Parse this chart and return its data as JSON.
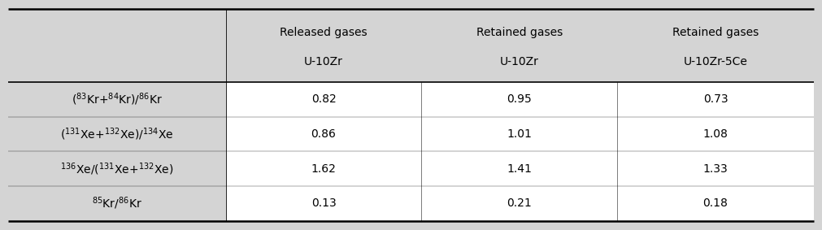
{
  "figsize": [
    10.11,
    2.83
  ],
  "dpi": 100,
  "background_color": "#d4d4d4",
  "header_bg": "#d4d4d4",
  "cell_bg": "#ffffff",
  "col_headers_line1": [
    "",
    "Released gases",
    "Retained gases",
    "Retained gases"
  ],
  "col_headers_line2": [
    "",
    "U-10Zr",
    "U-10Zr",
    "U-10Zr-5Ce"
  ],
  "row_labels": [
    "($^{83}$Kr+$^{84}$Kr)/$^{86}$Kr",
    "($^{131}$Xe+$^{132}$Xe)/$^{134}$Xe",
    "$^{136}$Xe/($^{131}$Xe+$^{132}$Xe)",
    "$^{85}$Kr/$^{86}$Kr"
  ],
  "data": [
    [
      "0.82",
      "0.95",
      "0.73"
    ],
    [
      "0.86",
      "1.01",
      "1.08"
    ],
    [
      "1.62",
      "1.41",
      "1.33"
    ],
    [
      "0.13",
      "0.21",
      "0.18"
    ]
  ],
  "font_size": 10,
  "header_font_size": 10,
  "lw_thick": 1.8,
  "lw_mid": 1.2,
  "lw_sep": 0.6,
  "gray_color": "#d4d4d4",
  "white_color": "#ffffff",
  "text_color": "#000000"
}
